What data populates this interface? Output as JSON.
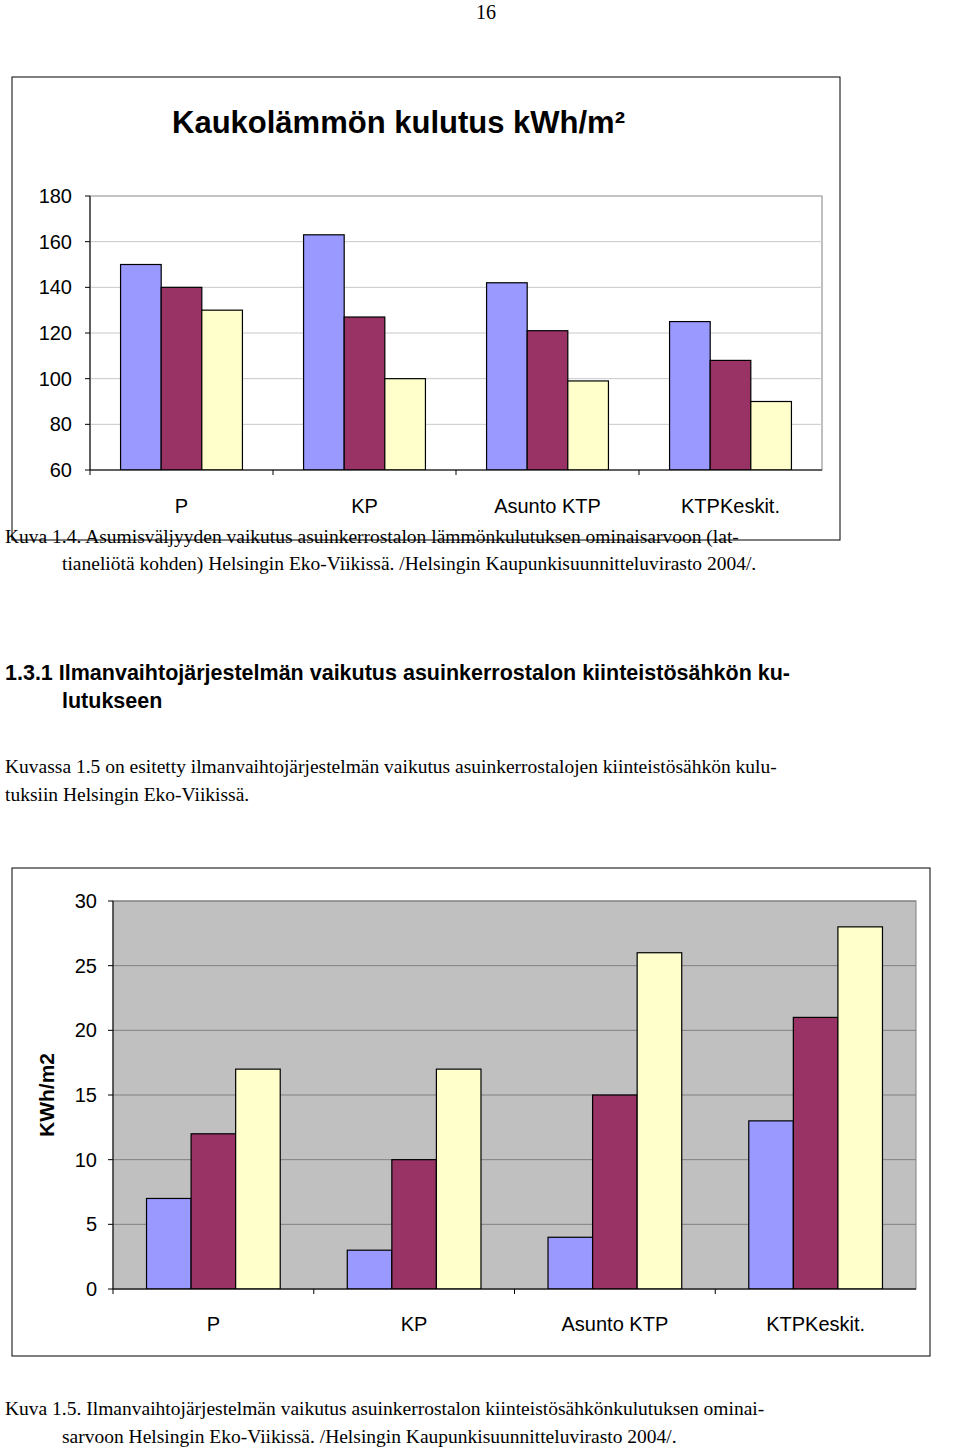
{
  "page_number": "16",
  "chart_data": [
    {
      "type": "bar",
      "title": "Kaukolämmön kulutus kWh/m²",
      "categories": [
        "P",
        "KP",
        "Asunto KTP",
        "KTPKeskit."
      ],
      "series": [
        {
          "color": "#9999ff",
          "values": [
            150,
            163,
            142,
            125
          ]
        },
        {
          "color": "#993366",
          "values": [
            140,
            127,
            121,
            108
          ]
        },
        {
          "color": "#ffffcc",
          "values": [
            130,
            100,
            99,
            90
          ]
        }
      ],
      "ylim": [
        60,
        180
      ],
      "yticks": [
        60,
        80,
        100,
        120,
        140,
        160,
        180
      ],
      "grid": true
    },
    {
      "type": "bar",
      "y_label": "KWh/m2",
      "categories": [
        "P",
        "KP",
        "Asunto KTP",
        "KTPKeskit."
      ],
      "series": [
        {
          "color": "#9999ff",
          "values": [
            7,
            3,
            4,
            13
          ]
        },
        {
          "color": "#993366",
          "values": [
            12,
            10,
            15,
            21
          ]
        },
        {
          "color": "#ffffcc",
          "values": [
            17,
            17,
            26,
            28
          ]
        }
      ],
      "ylim": [
        0,
        30
      ],
      "yticks": [
        0,
        5,
        10,
        15,
        20,
        25,
        30
      ],
      "grid": true
    }
  ],
  "caption_1": [
    "Kuva 1.4. Asumisväljyyden vaikutus asuinkerrostalon lämmönkulutuksen ominaisarvoon (lat-",
    "tianeliötä kohden) Helsingin Eko-Viikissä. /Helsingin Kaupunkisuunnitteluvirasto 2004/."
  ],
  "heading": [
    "1.3.1 Ilmanvaihtojärjestelmän vaikutus asuinkerrostalon kiinteistösähkön ku-",
    "lutukseen"
  ],
  "paragraph": [
    "Kuvassa 1.5 on esitetty ilmanvaihtojärjestelmän vaikutus asuinkerrostalojen kiinteistösähkön kulu-",
    "tuksiin Helsingin Eko-Viikissä."
  ],
  "caption_2": [
    "Kuva 1.5. Ilmanvaihtojärjestelmän vaikutus asuinkerrostalon kiinteistösähkönkulutuksen ominai-",
    "sarvoon Helsingin Eko-Viikissä. /Helsingin Kaupunkisuunnitteluvirasto 2004/."
  ]
}
